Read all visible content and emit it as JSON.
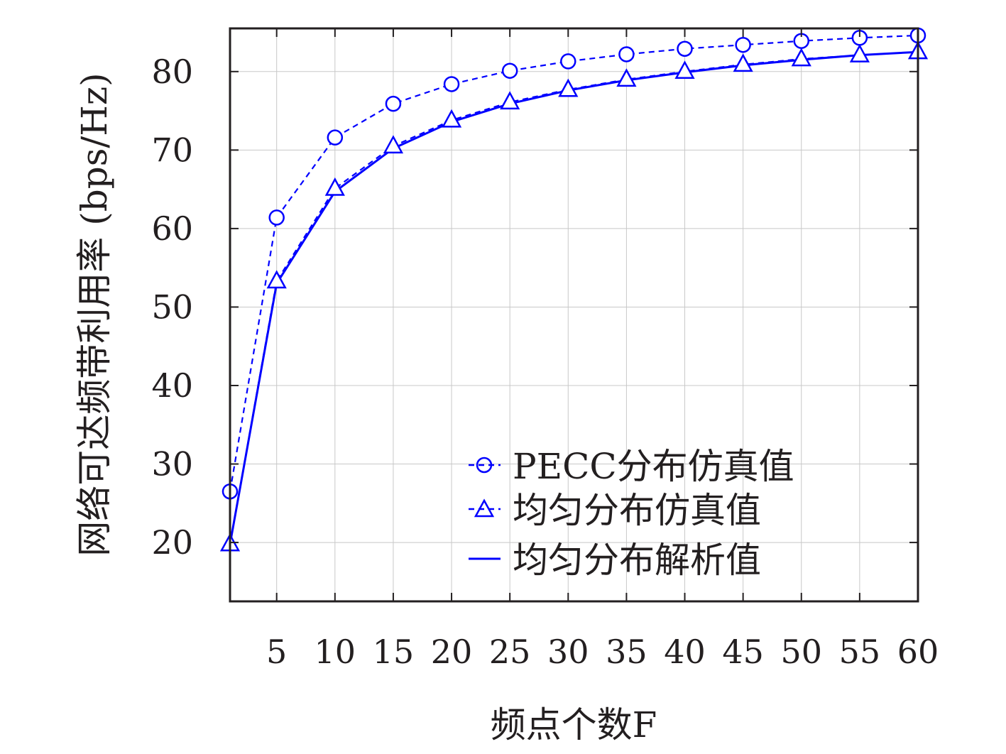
{
  "chart_data": {
    "type": "line",
    "xlabel": "频点个数F",
    "ylabel": "网络可达频带利用率 (bps/Hz)",
    "xlim": [
      1,
      60
    ],
    "ylim": [
      12.5,
      85.5
    ],
    "x_ticks": [
      "5",
      "10",
      "15",
      "20",
      "25",
      "30",
      "35",
      "40",
      "45",
      "50",
      "55",
      "60"
    ],
    "y_ticks": [
      "20",
      "30",
      "40",
      "50",
      "60",
      "70",
      "80"
    ],
    "grid": true,
    "legend_position": "bottom-right",
    "x": [
      1,
      5,
      10,
      15,
      20,
      25,
      30,
      35,
      40,
      45,
      50,
      55,
      60
    ],
    "series": [
      {
        "name": "PECC分布仿真值",
        "marker": "circle",
        "line_style": "dashed",
        "color": "#0000ff",
        "values": [
          26.5,
          61.4,
          71.6,
          75.9,
          78.4,
          80.1,
          81.3,
          82.2,
          82.9,
          83.4,
          83.9,
          84.3,
          84.6
        ]
      },
      {
        "name": "均匀分布仿真值",
        "marker": "triangle",
        "line_style": "dashed",
        "color": "#0000ff",
        "values": [
          19.8,
          53.3,
          65.1,
          70.5,
          73.8,
          76.1,
          77.7,
          79.0,
          80.0,
          80.9,
          81.6,
          82.1,
          82.5
        ]
      },
      {
        "name": "均匀分布解析值",
        "marker": "none",
        "line_style": "solid",
        "color": "#0000ff",
        "values": [
          19.8,
          53.0,
          64.7,
          70.2,
          73.6,
          75.9,
          77.6,
          78.9,
          79.9,
          80.8,
          81.5,
          82.1,
          82.5
        ]
      }
    ]
  }
}
